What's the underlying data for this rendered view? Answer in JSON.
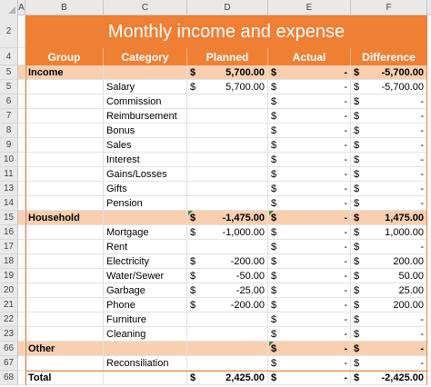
{
  "column_headers": [
    "A",
    "B",
    "C",
    "D",
    "E",
    "F"
  ],
  "title": "Monthly income and expense",
  "table_headers": {
    "group": "Group",
    "category": "Category",
    "planned": "Planned",
    "actual": "Actual",
    "difference": "Difference"
  },
  "currency": "$",
  "rows": [
    {
      "num": "2",
      "type": "title"
    },
    {
      "num": "4",
      "type": "header"
    },
    {
      "num": "5",
      "type": "group",
      "group": "Income",
      "category": "",
      "planned": "5,700.00",
      "actual": "-",
      "difference": "-5,700.00"
    },
    {
      "num": "5",
      "type": "item",
      "category": "Salary",
      "planned": "5,700.00",
      "actual": "-",
      "difference": "-5,700.00"
    },
    {
      "num": "6",
      "type": "item",
      "category": "Commission",
      "planned": "",
      "actual": "-",
      "difference": "-"
    },
    {
      "num": "7",
      "type": "item",
      "category": "Reimbursement",
      "planned": "",
      "actual": "-",
      "difference": "-"
    },
    {
      "num": "8",
      "type": "item",
      "category": "Bonus",
      "planned": "",
      "actual": "-",
      "difference": "-"
    },
    {
      "num": "9",
      "type": "item",
      "category": "Sales",
      "planned": "",
      "actual": "-",
      "difference": "-"
    },
    {
      "num": "10",
      "type": "item",
      "category": "Interest",
      "planned": "",
      "actual": "-",
      "difference": "-"
    },
    {
      "num": "11",
      "type": "item",
      "category": "Gains/Losses",
      "planned": "",
      "actual": "-",
      "difference": "-"
    },
    {
      "num": "13",
      "type": "item",
      "category": "Gifts",
      "planned": "",
      "actual": "-",
      "difference": "-"
    },
    {
      "num": "14",
      "type": "item",
      "category": "Pension",
      "planned": "",
      "actual": "-",
      "difference": "-"
    },
    {
      "num": "15",
      "type": "group",
      "group": "Household",
      "category": "",
      "planned": "-1,475.00",
      "actual": "-",
      "difference": "1,475.00"
    },
    {
      "num": "16",
      "type": "item",
      "category": "Mortgage",
      "planned": "-1,000.00",
      "actual": "-",
      "difference": "1,000.00"
    },
    {
      "num": "17",
      "type": "item",
      "category": "Rent",
      "planned": "",
      "actual": "-",
      "difference": "-"
    },
    {
      "num": "18",
      "type": "item",
      "category": "Electricity",
      "planned": "-200.00",
      "actual": "-",
      "difference": "200.00"
    },
    {
      "num": "19",
      "type": "item",
      "category": "Water/Sewer",
      "planned": "-50.00",
      "actual": "-",
      "difference": "50.00"
    },
    {
      "num": "20",
      "type": "item",
      "category": "Garbage",
      "planned": "-25.00",
      "actual": "-",
      "difference": "25.00"
    },
    {
      "num": "21",
      "type": "item",
      "category": "Phone",
      "planned": "-200.00",
      "actual": "-",
      "difference": "200.00"
    },
    {
      "num": "22",
      "type": "item",
      "category": "Furniture",
      "planned": "",
      "actual": "-",
      "difference": "-"
    },
    {
      "num": "23",
      "type": "item",
      "category": "Cleaning",
      "planned": "",
      "actual": "-",
      "difference": "-"
    },
    {
      "num": "66",
      "type": "group",
      "group": "Other",
      "category": "",
      "planned": "",
      "actual": "-",
      "difference": "-"
    },
    {
      "num": "67",
      "type": "item",
      "category": "Reconsiliation",
      "planned": "",
      "actual": "-",
      "difference": "-"
    },
    {
      "num": "68",
      "type": "total",
      "group": "Total",
      "category": "",
      "planned": "2,425.00",
      "actual": "-",
      "difference": "-2,425.00"
    }
  ],
  "colors": {
    "accent": "#ef7f33",
    "group_fill": "#f9cfaf",
    "comment_marker": "#2f8f3f"
  }
}
